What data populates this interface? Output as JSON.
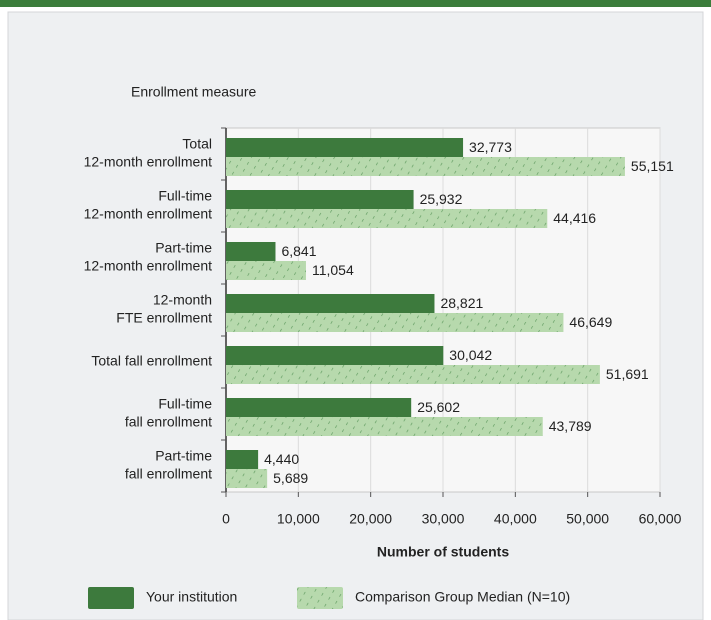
{
  "chart_data": {
    "type": "hbar",
    "ylabel": "Enrollment measure",
    "xlabel": "Number of students",
    "categories": [
      [
        "Total",
        "12-month enrollment"
      ],
      [
        "Full-time",
        "12-month enrollment"
      ],
      [
        "Part-time",
        "12-month enrollment"
      ],
      [
        "12-month",
        "FTE enrollment"
      ],
      [
        "Total fall enrollment"
      ],
      [
        "Full-time",
        "fall enrollment"
      ],
      [
        "Part-time",
        "fall enrollment"
      ]
    ],
    "series": [
      {
        "name": "Your institution",
        "color": "#3d7a3d",
        "pattern": false,
        "values": [
          32773,
          25932,
          6841,
          28821,
          30042,
          25602,
          4440
        ],
        "value_labels": [
          "32,773",
          "25,932",
          "6,841",
          "28,821",
          "30,042",
          "25,602",
          "4,440"
        ]
      },
      {
        "name": "Comparison Group Median (N=10)",
        "color": "#b7d9ad",
        "pattern": true,
        "values": [
          55151,
          44416,
          11054,
          46649,
          51691,
          43789,
          5689
        ],
        "value_labels": [
          "55,151",
          "44,416",
          "11,054",
          "46,649",
          "51,691",
          "43,789",
          "5,689"
        ]
      }
    ],
    "xlim": [
      0,
      60000
    ],
    "xticks": [
      0,
      {
        "value": 10000,
        "label": "10,000"
      },
      {
        "value": 20000,
        "label": "20,000"
      },
      {
        "value": 30000,
        "label": "30,000"
      },
      {
        "value": 40000,
        "label": "40,000"
      },
      {
        "value": 50000,
        "label": "50,000"
      },
      {
        "value": 60000,
        "label": "60,000"
      }
    ],
    "grid": true
  }
}
